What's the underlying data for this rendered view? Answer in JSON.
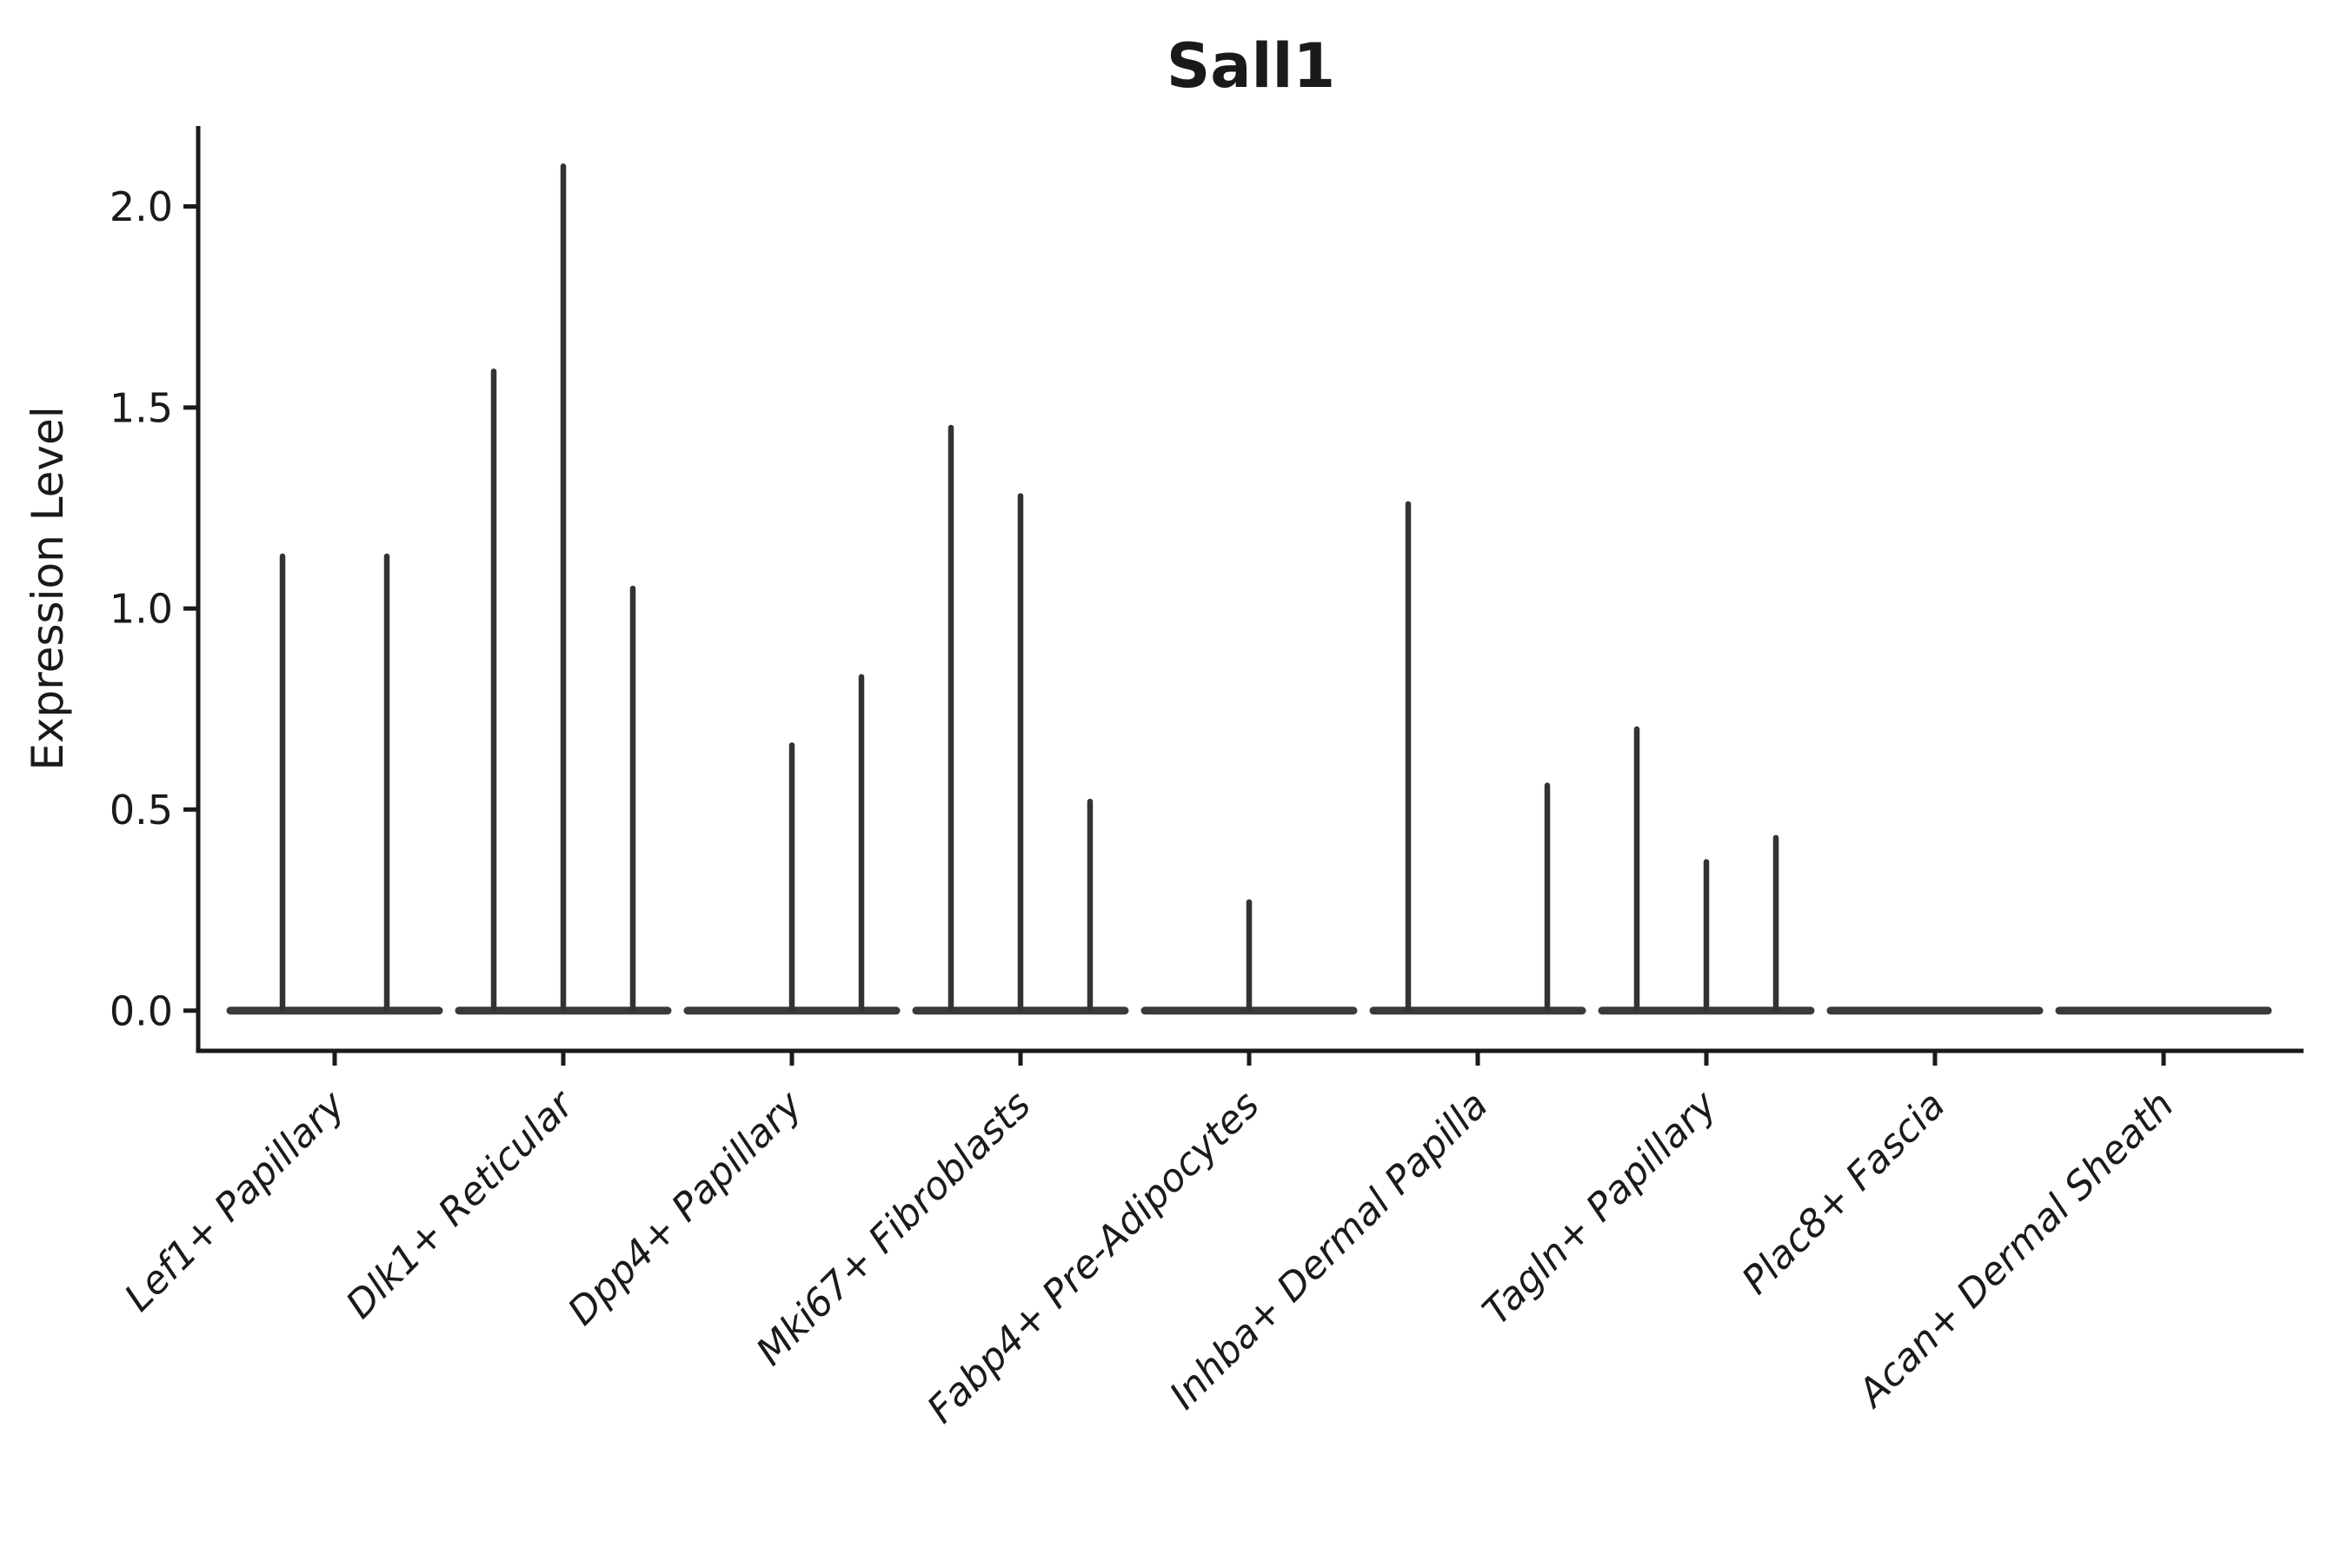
{
  "chart_data": {
    "type": "violin",
    "title": "Sall1",
    "ylabel": "Expression Level",
    "xlabel": "",
    "grid": false,
    "legend": "none",
    "ylim": [
      -0.1,
      2.2
    ],
    "yticks": [
      0.0,
      0.5,
      1.0,
      1.5,
      2.0
    ],
    "ytick_labels": [
      "0.0",
      "0.5",
      "1.0",
      "1.5",
      "2.0"
    ],
    "xtick_label_rotation": 45,
    "categories": [
      "Lef1+ Papillary",
      "Dlk1+ Reticular",
      "Dpp4+ Papillary",
      "Mki67+ Fibroblasts",
      "Fabp4+ Pre-Adipocytes",
      "Inhba+ Dermal Papilla",
      "Tagln+ Papillary",
      "Plac8+ Fascia",
      "Acan+ Dermal Sheath"
    ],
    "groups": [
      {
        "category": "Lef1+ Papillary",
        "violin_max_expression": [
          1.13,
          1.13
        ]
      },
      {
        "category": "Dlk1+ Reticular",
        "violin_max_expression": [
          1.59,
          2.1,
          1.05
        ]
      },
      {
        "category": "Dpp4+ Papillary",
        "violin_max_expression": [
          0,
          0.66,
          0.83
        ]
      },
      {
        "category": "Mki67+ Fibroblasts",
        "violin_max_expression": [
          1.45,
          1.28,
          0.52
        ]
      },
      {
        "category": "Fabp4+ Pre-Adipocytes",
        "violin_max_expression": [
          0,
          0.27,
          0
        ]
      },
      {
        "category": "Inhba+ Dermal Papilla",
        "violin_max_expression": [
          1.26,
          0,
          0.56
        ]
      },
      {
        "category": "Tagln+ Papillary",
        "violin_max_expression": [
          0.7,
          0.37,
          0.43
        ]
      },
      {
        "category": "Plac8+ Fascia",
        "violin_max_expression": [
          0,
          0,
          0
        ]
      },
      {
        "category": "Acan+ Dermal Sheath",
        "violin_max_expression": [
          0,
          0,
          0
        ]
      }
    ],
    "colors": {
      "axis": "#1a1a1a",
      "violin": "#333333",
      "baseline": "#3a3a3a",
      "background": "#ffffff"
    }
  }
}
